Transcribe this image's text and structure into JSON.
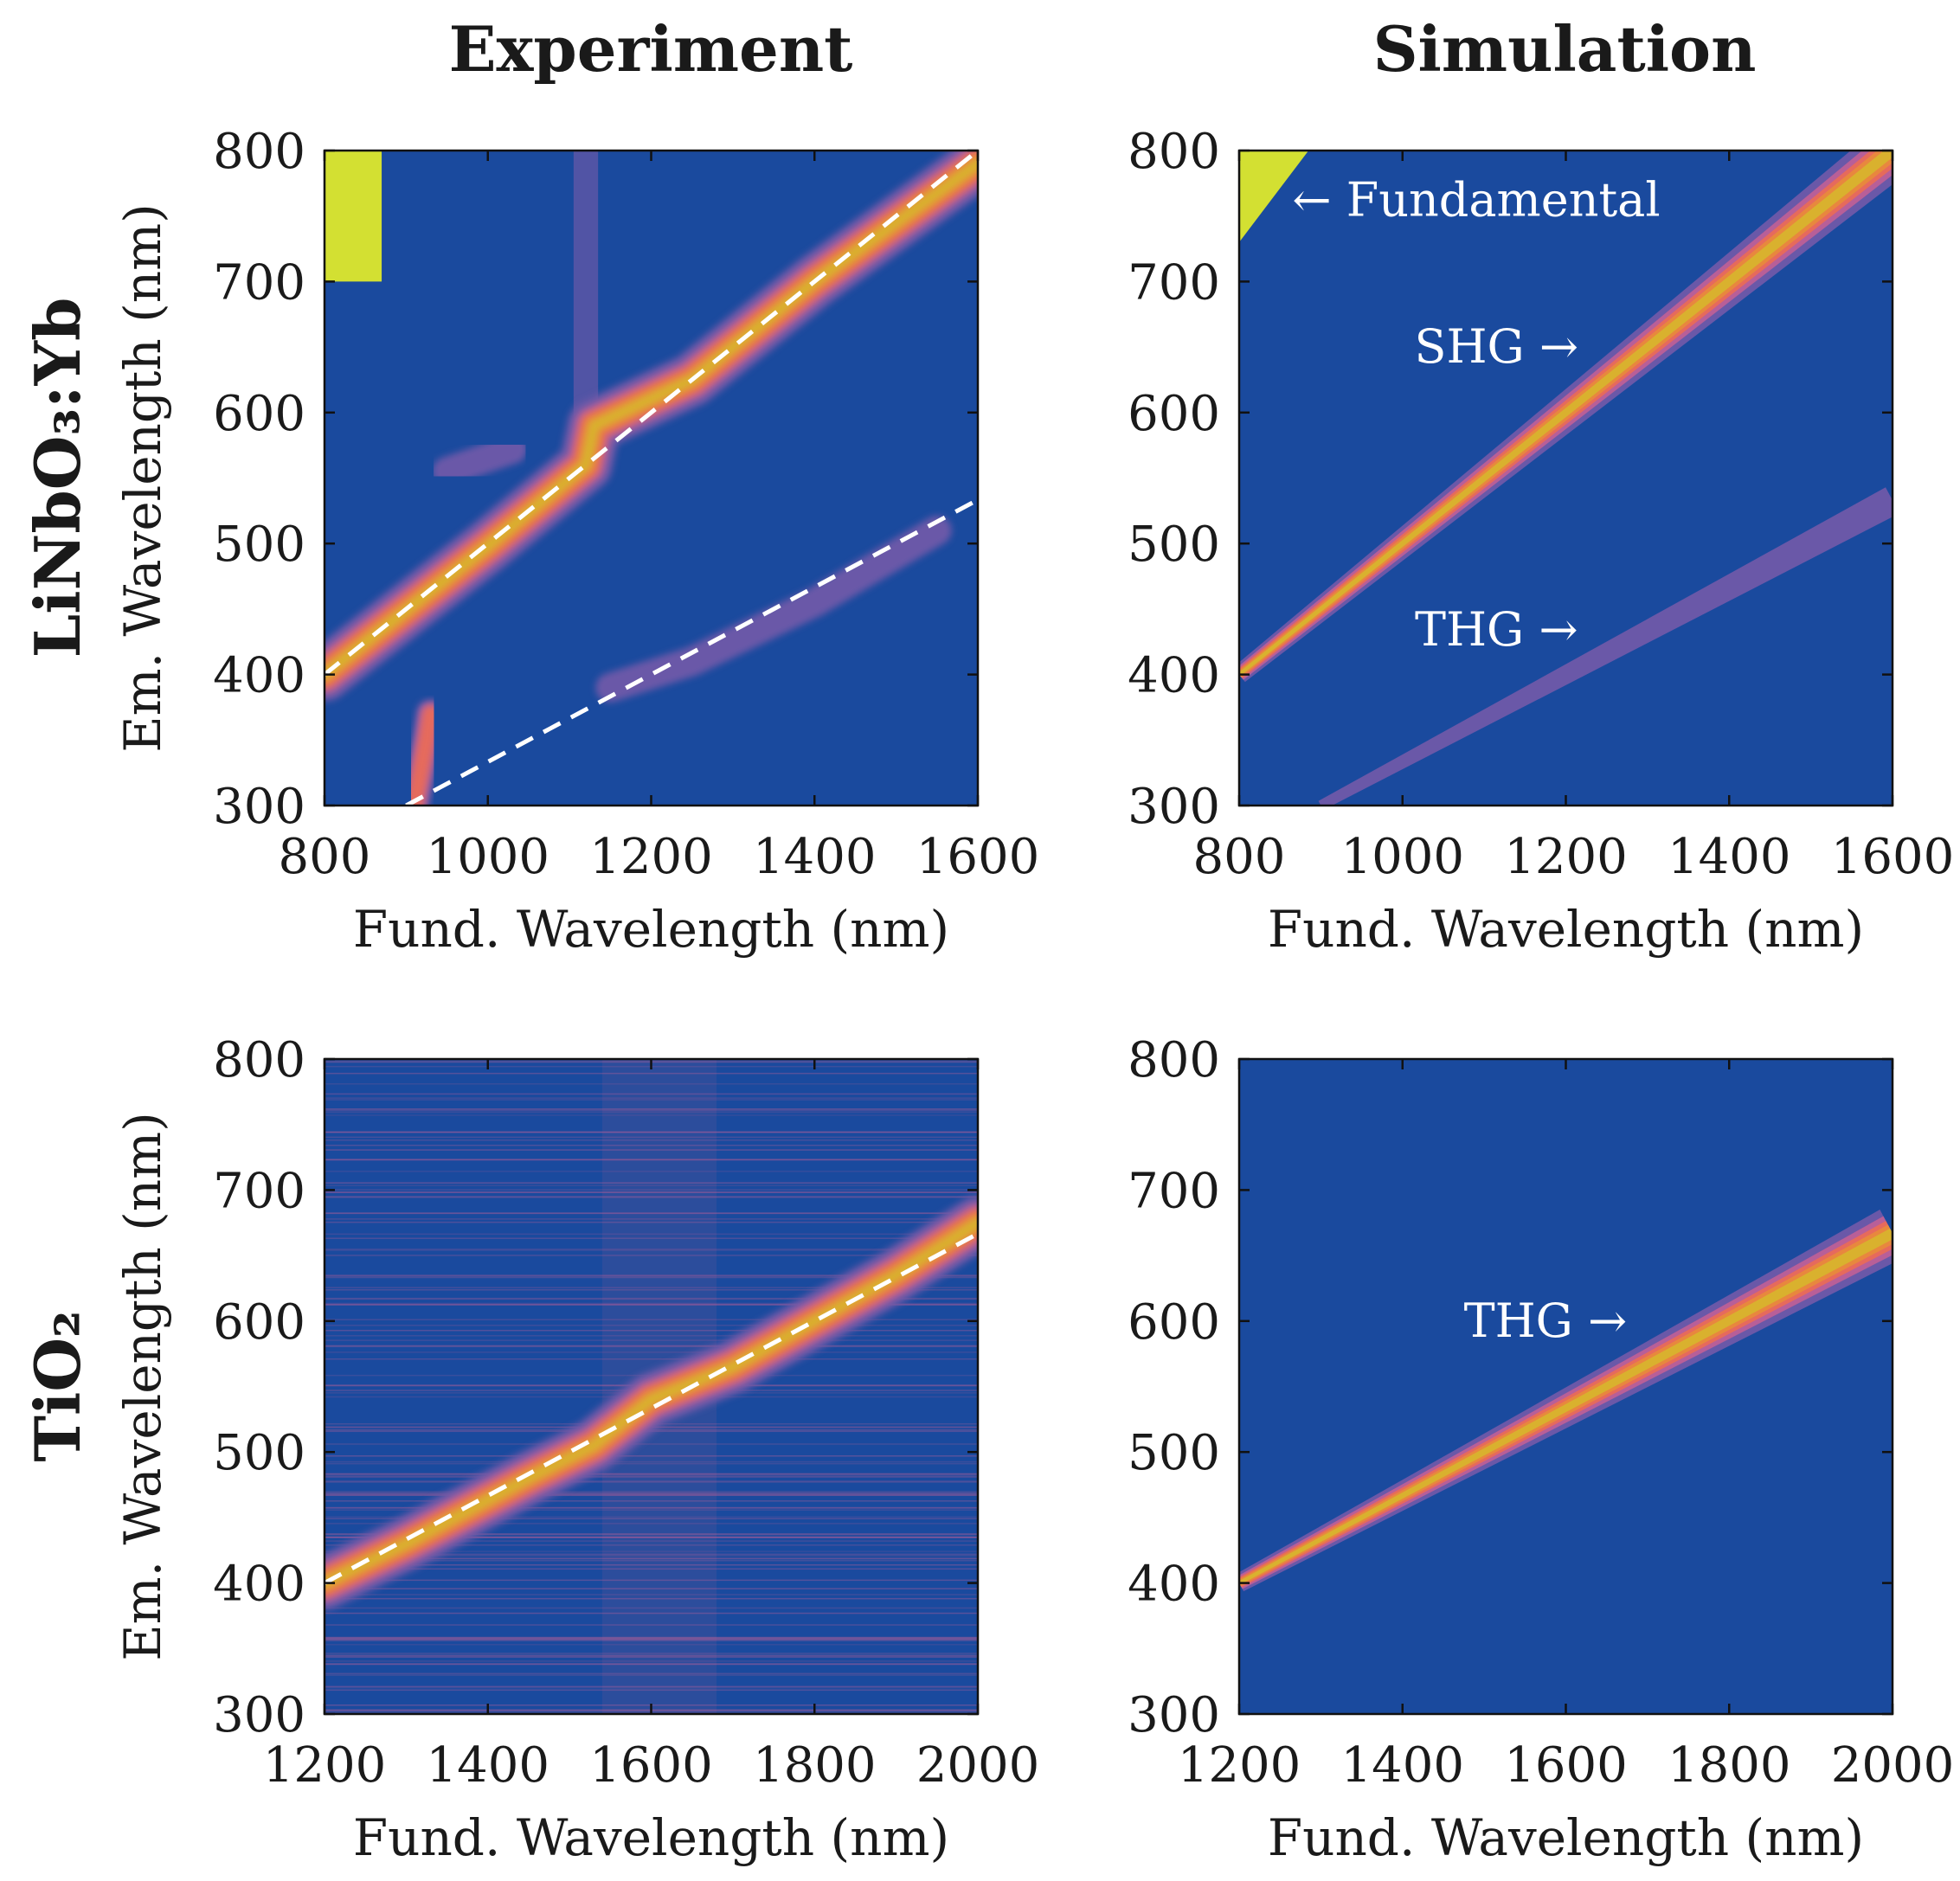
{
  "colors": {
    "background": "#1a4a9e",
    "purple": "#6a58a8",
    "pink": "#b85f98",
    "salmon": "#e66a5c",
    "orange": "#e8873e",
    "yellow": "#d9b12e",
    "lime": "#d3e032",
    "dash": "#ffffff"
  },
  "column_titles": [
    "Experiment",
    "Simulation"
  ],
  "row_labels": [
    "LiNbO₃:Yb",
    "TiO₂"
  ],
  "chart_data": [
    {
      "type": "heatmap",
      "id": "linbo3-experiment",
      "xlabel": "Fund. Wavelength (nm)",
      "ylabel": "Em. Wavelength (nm)",
      "xlim": [
        800,
        1600
      ],
      "ylim": [
        300,
        800
      ],
      "xticks": [
        "800",
        "1000",
        "1200",
        "1400",
        "1600"
      ],
      "yticks": [
        "300",
        "400",
        "500",
        "600",
        "700",
        "800"
      ],
      "dashed_lines": [
        {
          "name": "SHG fit",
          "divisor": 2,
          "x": [
            800,
            1600
          ]
        },
        {
          "name": "THG fit",
          "divisor": 3,
          "x": [
            900,
            1600
          ]
        }
      ],
      "bands": [
        {
          "name": "SHG signal",
          "points": [
            [
              800,
              400
            ],
            [
              1000,
              498
            ],
            [
              1120,
              560
            ],
            [
              1130,
              590
            ],
            [
              1250,
              625
            ],
            [
              1400,
              700
            ],
            [
              1600,
              790
            ]
          ],
          "level": 5
        },
        {
          "name": "THG signal",
          "points": [
            [
              1150,
              390
            ],
            [
              1250,
              410
            ],
            [
              1400,
              455
            ],
            [
              1550,
              510
            ]
          ],
          "level": 1
        },
        {
          "name": "UV spot",
          "points": [
            [
              910,
              300
            ],
            [
              925,
              350
            ],
            [
              930,
              370
            ]
          ],
          "level": 3
        },
        {
          "name": "side lobe",
          "points": [
            [
              950,
              555
            ],
            [
              1030,
              572
            ]
          ],
          "level": 1
        }
      ],
      "regions": [
        {
          "name": "fundamental leakage",
          "x": [
            800,
            870
          ],
          "y": [
            700,
            800
          ],
          "level": 6
        },
        {
          "name": "detector streak",
          "x": [
            1105,
            1135
          ],
          "y": [
            560,
            800
          ],
          "level": 1
        }
      ],
      "annotations": []
    },
    {
      "type": "heatmap",
      "id": "linbo3-simulation",
      "xlabel": "Fund. Wavelength (nm)",
      "ylabel": "",
      "xlim": [
        800,
        1600
      ],
      "ylim": [
        300,
        800
      ],
      "xticks": [
        "800",
        "1000",
        "1200",
        "1400",
        "1600"
      ],
      "yticks": [
        "300",
        "400",
        "500",
        "600",
        "700",
        "800"
      ],
      "dashed_lines": [],
      "bands": [
        {
          "name": "SHG band",
          "points": [
            [
              800,
              400
            ],
            [
              1600,
              800
            ]
          ],
          "level": 5,
          "grow": true
        },
        {
          "name": "THG band",
          "points": [
            [
              900,
              300
            ],
            [
              1600,
              533
            ]
          ],
          "level": 1,
          "grow": true
        }
      ],
      "regions": [
        {
          "name": "fundamental",
          "poly": [
            [
              800,
              730
            ],
            [
              800,
              800
            ],
            [
              885,
              800
            ]
          ],
          "level": 6
        }
      ],
      "annotations": [
        {
          "text": "← Fundamental",
          "x": 865,
          "y": 762,
          "anchor": "start"
        },
        {
          "text": "SHG →",
          "x": 1115,
          "y": 650,
          "anchor": "middle"
        },
        {
          "text": "THG →",
          "x": 1115,
          "y": 434,
          "anchor": "middle"
        }
      ]
    },
    {
      "type": "heatmap",
      "id": "tio2-experiment",
      "xlabel": "Fund. Wavelength (nm)",
      "ylabel": "Em. Wavelength (nm)",
      "xlim": [
        1200,
        2000
      ],
      "ylim": [
        300,
        800
      ],
      "xticks": [
        "1200",
        "1400",
        "1600",
        "1800",
        "2000"
      ],
      "yticks": [
        "300",
        "400",
        "500",
        "600",
        "700",
        "800"
      ],
      "dashed_lines": [
        {
          "name": "THG fit",
          "divisor": 3,
          "x": [
            1200,
            2000
          ]
        }
      ],
      "bands": [
        {
          "name": "THG signal",
          "points": [
            [
              1200,
              400
            ],
            [
              1300,
              430
            ],
            [
              1450,
              480
            ],
            [
              1530,
              505
            ],
            [
              1600,
              540
            ],
            [
              1700,
              565
            ],
            [
              1800,
              600
            ],
            [
              1900,
              635
            ],
            [
              2000,
              675
            ]
          ],
          "level": 5
        }
      ],
      "regions": [],
      "noise": true,
      "annotations": []
    },
    {
      "type": "heatmap",
      "id": "tio2-simulation",
      "xlabel": "Fund. Wavelength (nm)",
      "ylabel": "",
      "xlim": [
        1200,
        2000
      ],
      "ylim": [
        300,
        800
      ],
      "xticks": [
        "1200",
        "1400",
        "1600",
        "1800",
        "2000"
      ],
      "yticks": [
        "300",
        "400",
        "500",
        "600",
        "700",
        "800"
      ],
      "dashed_lines": [],
      "bands": [
        {
          "name": "THG band",
          "points": [
            [
              1200,
              400
            ],
            [
              2000,
              667
            ]
          ],
          "level": 5,
          "grow": true
        }
      ],
      "regions": [],
      "annotations": [
        {
          "text": "THG →",
          "x": 1575,
          "y": 600,
          "anchor": "middle"
        }
      ]
    }
  ]
}
